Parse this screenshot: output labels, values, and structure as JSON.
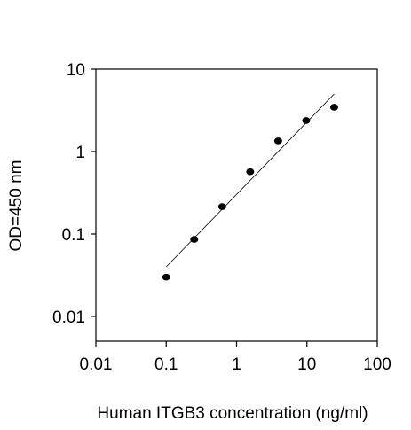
{
  "chart_data": {
    "type": "scatter",
    "x_label": "Human ITGB3 concentration (ng/ml)",
    "y_label": "OD=450 nm",
    "x": [
      0.1,
      0.25,
      0.625,
      1.563,
      3.906,
      9.766,
      24.41
    ],
    "values": [
      0.03,
      0.086,
      0.215,
      0.57,
      1.35,
      2.38,
      3.45
    ],
    "fit": {
      "x": [
        0.1,
        24.41
      ],
      "values": [
        0.04,
        5
      ]
    },
    "color": "#000000",
    "xscale": "log",
    "yscale": "log",
    "xlim": [
      0.01,
      100
    ],
    "ylim": [
      0.005,
      10
    ],
    "xticks": [
      0.01,
      0.1,
      1,
      10,
      100
    ],
    "yticks": [
      0.01,
      0.1,
      1,
      10
    ]
  }
}
